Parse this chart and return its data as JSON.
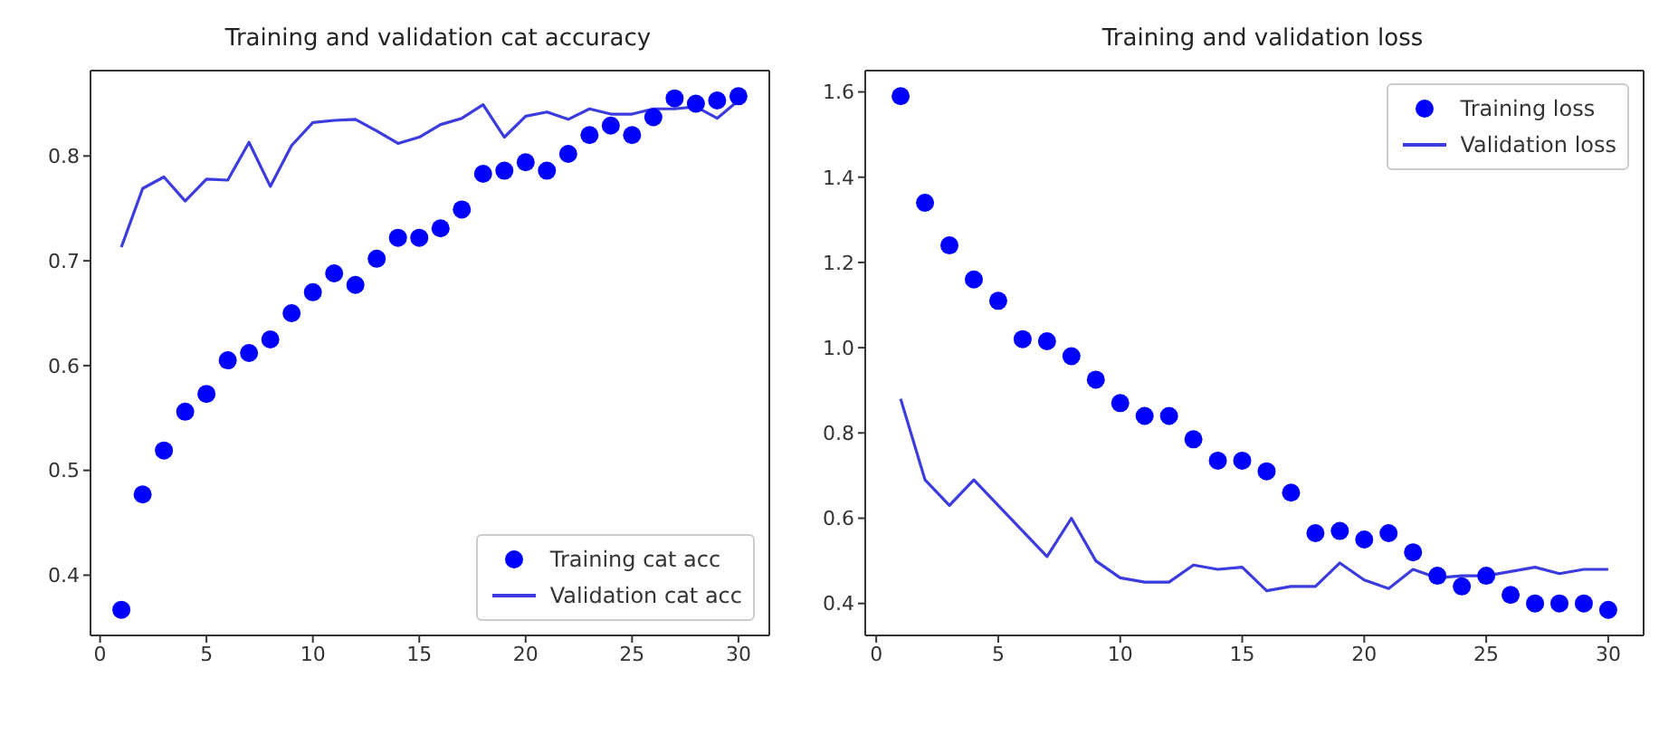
{
  "chart_data": [
    {
      "type": "line",
      "title": "Training and validation cat accuracy",
      "x": [
        1,
        2,
        3,
        4,
        5,
        6,
        7,
        8,
        9,
        10,
        11,
        12,
        13,
        14,
        15,
        16,
        17,
        18,
        19,
        20,
        21,
        22,
        23,
        24,
        25,
        26,
        27,
        28,
        29,
        30
      ],
      "series": [
        {
          "name": "Training cat acc",
          "type": "scatter",
          "marker": "circle",
          "color": "#0000ff",
          "values": [
            0.367,
            0.477,
            0.519,
            0.556,
            0.573,
            0.605,
            0.612,
            0.625,
            0.65,
            0.67,
            0.688,
            0.677,
            0.702,
            0.722,
            0.722,
            0.731,
            0.749,
            0.783,
            0.786,
            0.794,
            0.786,
            0.802,
            0.82,
            0.829,
            0.82,
            0.837,
            0.855,
            0.85,
            0.853,
            0.857
          ]
        },
        {
          "name": "Validation cat acc",
          "type": "line",
          "color": "#3b3be0",
          "values": [
            0.713,
            0.769,
            0.78,
            0.757,
            0.778,
            0.777,
            0.813,
            0.771,
            0.81,
            0.832,
            0.834,
            0.835,
            0.824,
            0.812,
            0.818,
            0.83,
            0.836,
            0.849,
            0.818,
            0.838,
            0.842,
            0.835,
            0.845,
            0.84,
            0.84,
            0.845,
            0.845,
            0.847,
            0.836,
            0.853
          ]
        }
      ],
      "xlim": [
        -0.45,
        31.45
      ],
      "xticks": [
        0,
        5,
        10,
        15,
        20,
        25,
        30
      ],
      "ylim": [
        0.3425,
        0.8815
      ],
      "yticks": [
        0.4,
        0.5,
        0.6,
        0.7,
        0.8
      ],
      "grid": false,
      "legend": "bottom right"
    },
    {
      "type": "line",
      "title": "Training and validation loss",
      "x": [
        1,
        2,
        3,
        4,
        5,
        6,
        7,
        8,
        9,
        10,
        11,
        12,
        13,
        14,
        15,
        16,
        17,
        18,
        19,
        20,
        21,
        22,
        23,
        24,
        25,
        26,
        27,
        28,
        29,
        30
      ],
      "series": [
        {
          "name": "Training loss",
          "type": "scatter",
          "marker": "circle",
          "color": "#0000ff",
          "values": [
            1.59,
            1.34,
            1.24,
            1.16,
            1.11,
            1.02,
            1.015,
            0.98,
            0.925,
            0.87,
            0.84,
            0.84,
            0.785,
            0.735,
            0.735,
            0.71,
            0.66,
            0.565,
            0.57,
            0.55,
            0.565,
            0.52,
            0.465,
            0.44,
            0.465,
            0.42,
            0.4,
            0.4,
            0.4,
            0.385
          ]
        },
        {
          "name": "Validation loss",
          "type": "line",
          "color": "#3b3be0",
          "values": [
            0.88,
            0.69,
            0.63,
            0.69,
            0.63,
            0.57,
            0.51,
            0.6,
            0.5,
            0.46,
            0.45,
            0.45,
            0.49,
            0.48,
            0.485,
            0.43,
            0.44,
            0.44,
            0.495,
            0.455,
            0.435,
            0.48,
            0.46,
            0.465,
            0.465,
            0.475,
            0.485,
            0.47,
            0.48,
            0.48
          ]
        }
      ],
      "xlim": [
        -0.45,
        31.45
      ],
      "xticks": [
        0,
        5,
        10,
        15,
        20,
        25,
        30
      ],
      "ylim": [
        0.325,
        1.65
      ],
      "yticks": [
        0.4,
        0.6,
        0.8,
        {
          "value": 1.0,
          "label": "1.0"
        },
        1.2,
        1.4,
        1.6
      ],
      "grid": false,
      "legend": "top right"
    }
  ]
}
